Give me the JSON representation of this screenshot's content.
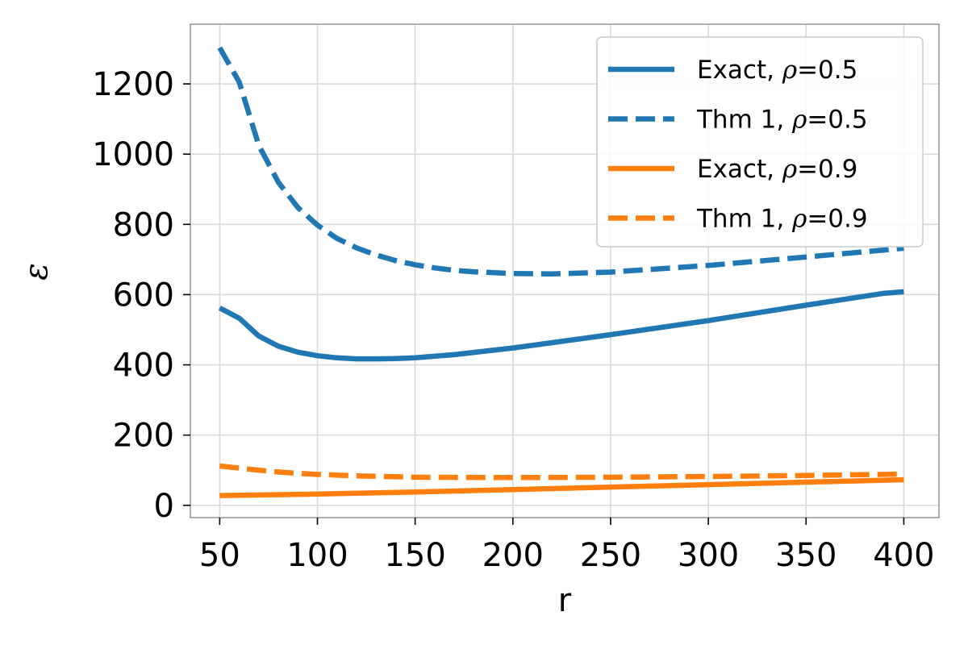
{
  "chart_data": {
    "type": "line",
    "title": "",
    "xlabel": "r",
    "ylabel": "ε",
    "xlim": [
      35,
      418
    ],
    "ylim": [
      -35,
      1370
    ],
    "xticks": [
      50,
      100,
      150,
      200,
      250,
      300,
      350,
      400
    ],
    "yticks": [
      0,
      200,
      400,
      600,
      800,
      1000,
      1200
    ],
    "grid": true,
    "legend_position": "top-right",
    "series": [
      {
        "name": "Exact, ρ=0.5",
        "legend_prefix": "Exact, ",
        "legend_suffix": "=0.5",
        "color": "#1f77b4",
        "style": "solid",
        "x": [
          50,
          60,
          70,
          80,
          90,
          100,
          110,
          120,
          130,
          140,
          150,
          170,
          200,
          250,
          300,
          350,
          390,
          400
        ],
        "y": [
          562,
          533,
          482,
          453,
          436,
          426,
          420,
          417,
          417,
          418,
          420,
          429,
          448,
          486,
          526,
          570,
          604,
          608
        ]
      },
      {
        "name": "Thm 1, ρ=0.5",
        "legend_prefix": "Thm 1, ",
        "legend_suffix": "=0.5",
        "color": "#1f77b4",
        "style": "dashed",
        "x": [
          50,
          60,
          70,
          80,
          90,
          100,
          110,
          120,
          130,
          140,
          150,
          160,
          170,
          180,
          200,
          220,
          250,
          300,
          350,
          400
        ],
        "y": [
          1303,
          1205,
          1025,
          920,
          848,
          798,
          760,
          733,
          713,
          697,
          685,
          676,
          669,
          665,
          660,
          659,
          664,
          683,
          707,
          732
        ]
      },
      {
        "name": "Exact, ρ=0.9",
        "legend_prefix": "Exact, ",
        "legend_suffix": "=0.9",
        "color": "#ff7f0e",
        "style": "solid",
        "x": [
          50,
          100,
          150,
          200,
          250,
          300,
          350,
          400
        ],
        "y": [
          28,
          32,
          38,
          45,
          52,
          59,
          66,
          73
        ]
      },
      {
        "name": "Thm 1, ρ=0.9",
        "legend_prefix": "Thm 1, ",
        "legend_suffix": "=0.9",
        "color": "#ff7f0e",
        "style": "dashed",
        "x": [
          50,
          60,
          70,
          80,
          90,
          100,
          120,
          150,
          200,
          250,
          300,
          350,
          400
        ],
        "y": [
          112,
          106,
          100,
          95,
          91,
          88,
          84,
          80,
          79,
          80,
          82,
          85,
          89
        ]
      }
    ]
  }
}
